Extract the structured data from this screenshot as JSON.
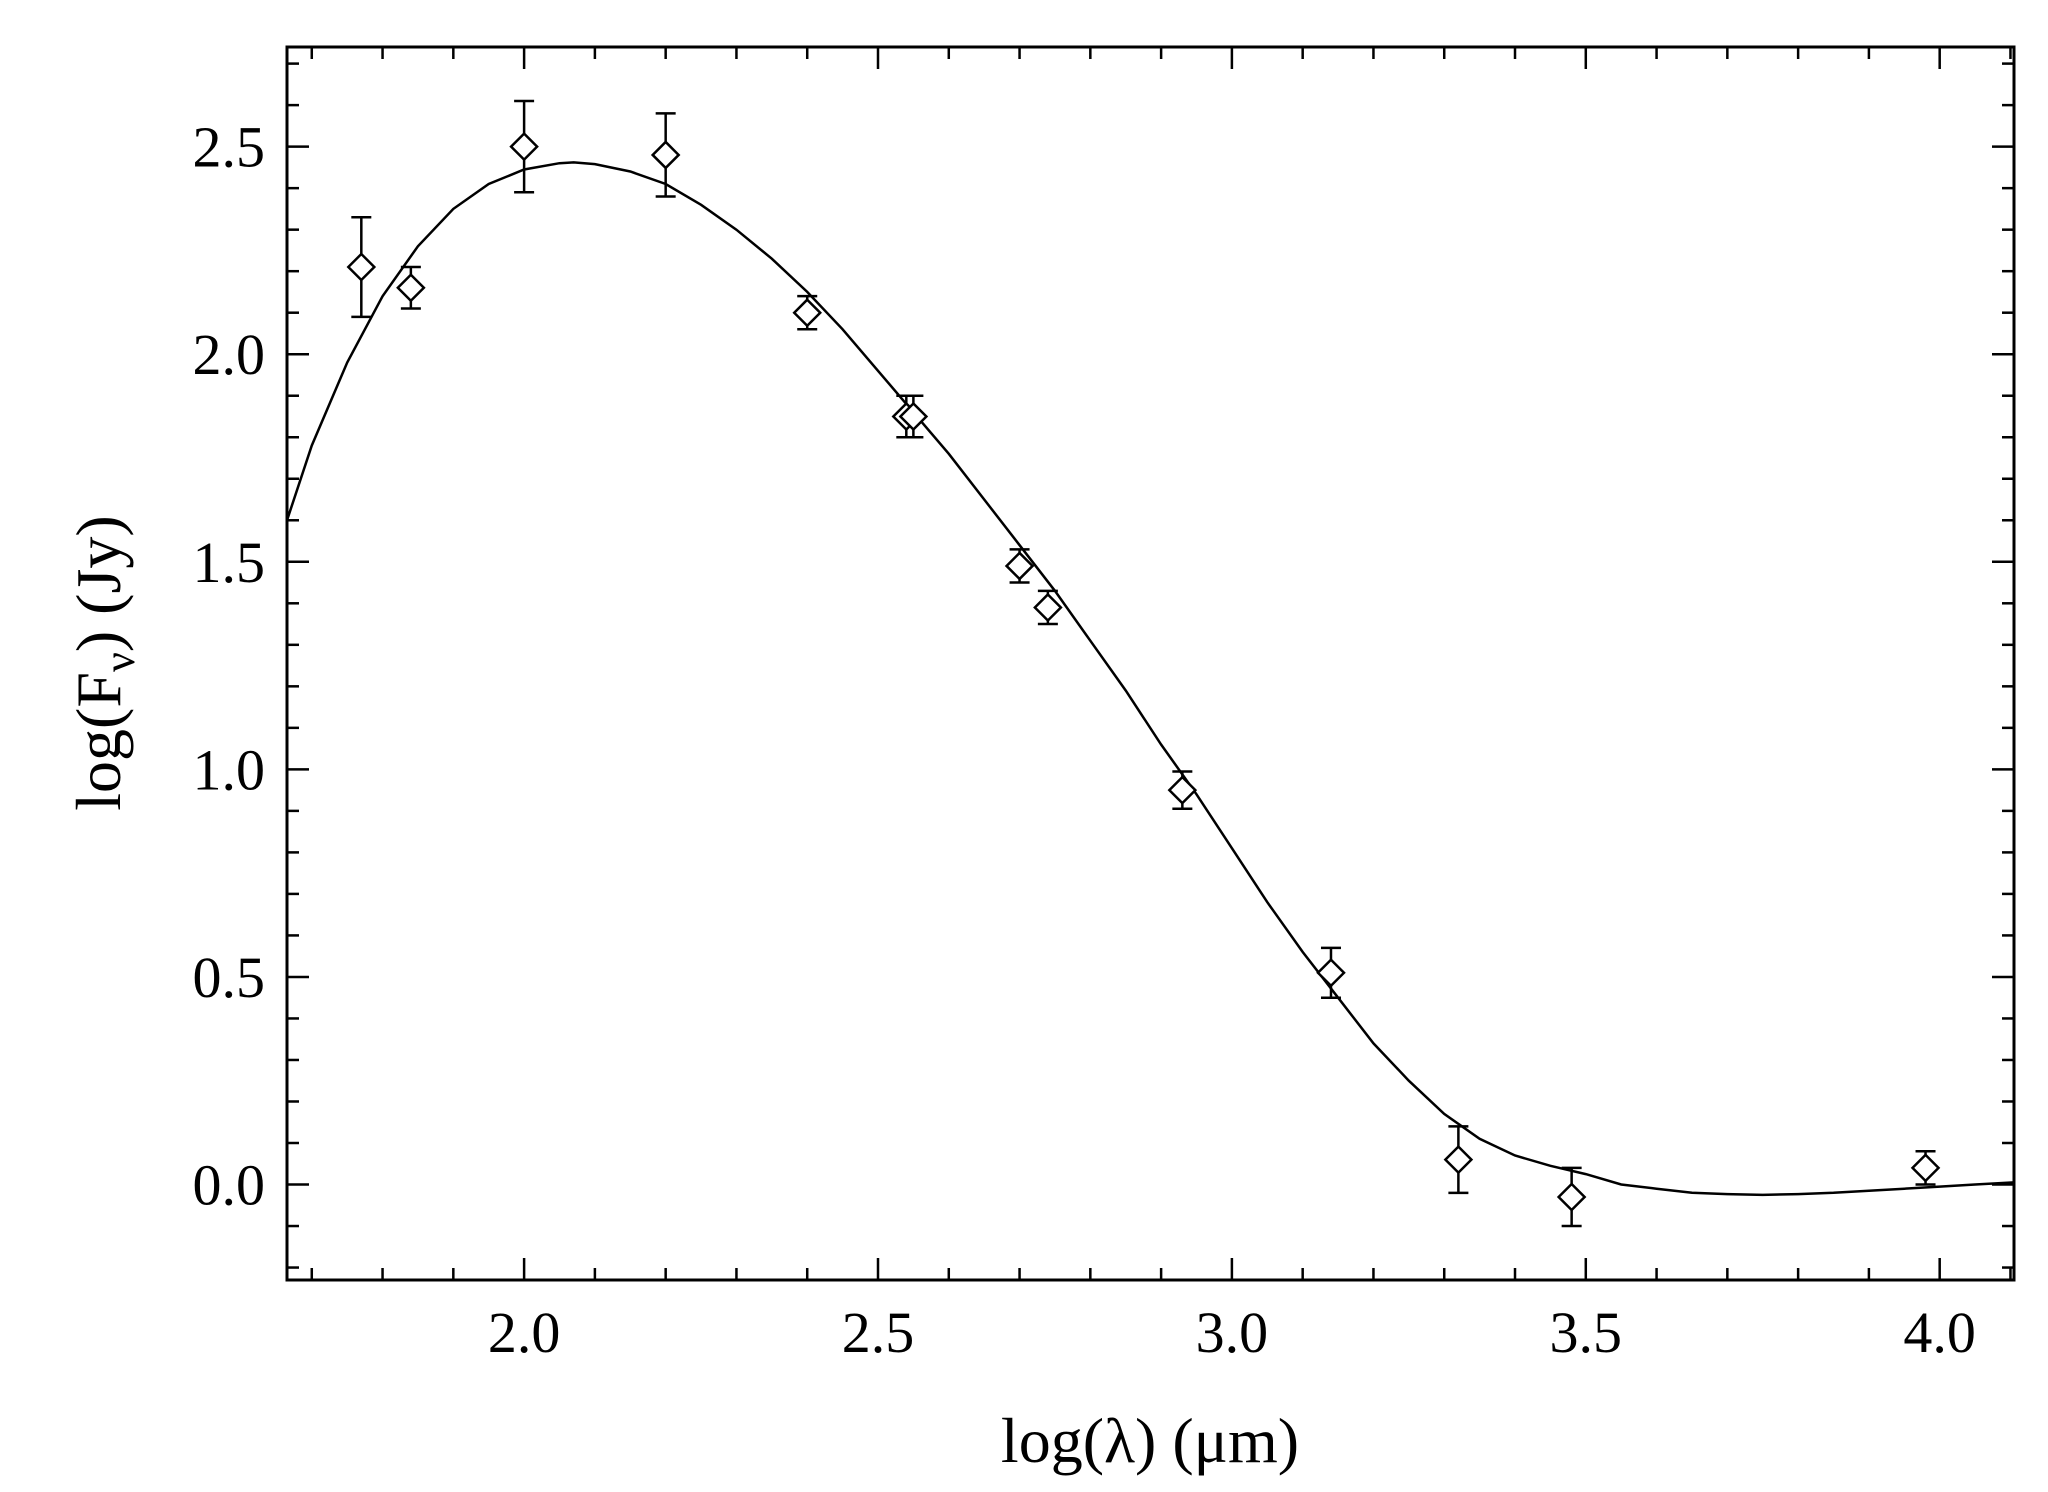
{
  "chart_data": {
    "type": "scatter",
    "title": "",
    "xlabel": "log(λ) (μm)",
    "ylabel": {
      "prefix": "log(F",
      "subscript": "ν",
      "suffix": ") (Jy)"
    },
    "xlim": [
      1.665,
      4.105
    ],
    "ylim": [
      -0.23,
      2.74
    ],
    "grid": false,
    "legend": "none",
    "x_ticks": [
      {
        "value": 2.0,
        "label": "2.0"
      },
      {
        "value": 2.5,
        "label": "2.5"
      },
      {
        "value": 3.0,
        "label": "3.0"
      },
      {
        "value": 3.5,
        "label": "3.5"
      },
      {
        "value": 4.0,
        "label": "4.0"
      }
    ],
    "y_ticks": [
      {
        "value": 0.0,
        "label": "0.0"
      },
      {
        "value": 0.5,
        "label": "0.5"
      },
      {
        "value": 1.0,
        "label": "1.0"
      },
      {
        "value": 1.5,
        "label": "1.5"
      },
      {
        "value": 2.0,
        "label": "2.0"
      },
      {
        "value": 2.5,
        "label": "2.5"
      }
    ],
    "x_minor_step": 0.1,
    "y_minor_step": 0.1,
    "points": [
      {
        "x": 1.77,
        "y": 2.21,
        "err": 0.12
      },
      {
        "x": 1.84,
        "y": 2.16,
        "err": 0.05
      },
      {
        "x": 2.0,
        "y": 2.5,
        "err": 0.11
      },
      {
        "x": 2.2,
        "y": 2.48,
        "err": 0.1
      },
      {
        "x": 2.4,
        "y": 2.1,
        "err": 0.04
      },
      {
        "x": 2.54,
        "y": 1.85,
        "err": 0.05
      },
      {
        "x": 2.55,
        "y": 1.85,
        "err": 0.05
      },
      {
        "x": 2.7,
        "y": 1.49,
        "err": 0.04
      },
      {
        "x": 2.74,
        "y": 1.39,
        "err": 0.04
      },
      {
        "x": 2.93,
        "y": 0.95,
        "err": 0.045
      },
      {
        "x": 3.14,
        "y": 0.51,
        "err": 0.06
      },
      {
        "x": 3.32,
        "y": 0.06,
        "err": 0.08
      },
      {
        "x": 3.48,
        "y": -0.03,
        "err": 0.07
      },
      {
        "x": 3.98,
        "y": 0.04,
        "err": 0.04
      }
    ],
    "fit_curve": {
      "x": [
        1.665,
        1.7,
        1.75,
        1.8,
        1.85,
        1.9,
        1.95,
        2.0,
        2.05,
        2.07,
        2.1,
        2.15,
        2.2,
        2.25,
        2.3,
        2.35,
        2.4,
        2.45,
        2.5,
        2.55,
        2.6,
        2.65,
        2.7,
        2.75,
        2.8,
        2.85,
        2.9,
        2.95,
        3.0,
        3.05,
        3.1,
        3.15,
        3.2,
        3.25,
        3.3,
        3.35,
        3.4,
        3.45,
        3.5,
        3.55,
        3.6,
        3.65,
        3.7,
        3.75,
        3.8,
        3.85,
        3.9,
        3.95,
        4.0,
        4.05,
        4.105
      ],
      "y": [
        1.6,
        1.78,
        1.98,
        2.14,
        2.26,
        2.35,
        2.41,
        2.445,
        2.46,
        2.462,
        2.458,
        2.44,
        2.41,
        2.36,
        2.3,
        2.23,
        2.15,
        2.06,
        1.96,
        1.86,
        1.76,
        1.65,
        1.54,
        1.43,
        1.31,
        1.19,
        1.06,
        0.94,
        0.81,
        0.68,
        0.56,
        0.45,
        0.34,
        0.25,
        0.17,
        0.11,
        0.07,
        0.045,
        0.025,
        0.0,
        -0.01,
        -0.02,
        -0.023,
        -0.025,
        -0.023,
        -0.02,
        -0.015,
        -0.01,
        -0.005,
        0.0,
        0.005
      ]
    }
  }
}
